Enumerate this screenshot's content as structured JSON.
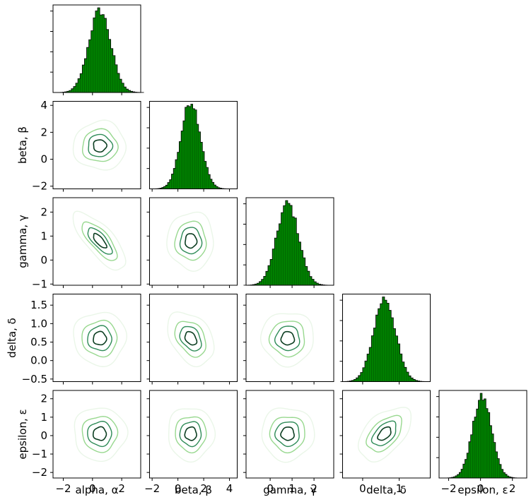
{
  "chart_data": {
    "type": "corner",
    "parameters": [
      {
        "name": "alpha",
        "label": "alpha, α",
        "xlim": [
          -2.7,
          3.3
        ],
        "ylim": [
          -2.7,
          3.3
        ],
        "ticks": [
          -2,
          0,
          2
        ],
        "mean": 0.5,
        "std": 0.75
      },
      {
        "name": "beta",
        "label": "beta, β",
        "xlim": [
          -2.2,
          4.6
        ],
        "ylim": [
          -2.2,
          4.3
        ],
        "ticks": [
          -2,
          0,
          2,
          4
        ],
        "mean": 1.0,
        "std": 0.75
      },
      {
        "name": "gamma",
        "label": "gamma, γ",
        "xlim": [
          -1.1,
          2.9
        ],
        "ylim": [
          -1.05,
          2.6
        ],
        "ticks": [
          -1,
          0,
          1,
          2
        ],
        "xticks": [
          0,
          1,
          2
        ],
        "mean": 0.8,
        "std": 0.5
      },
      {
        "name": "delta",
        "label": "delta, δ",
        "xlim": [
          -0.55,
          1.85
        ],
        "ylim": [
          -0.57,
          1.8
        ],
        "ticks": [
          -0.5,
          0.0,
          0.5,
          1.0,
          1.5
        ],
        "xticks": [
          0,
          1
        ],
        "mean": 0.6,
        "std": 0.3
      },
      {
        "name": "epsilon",
        "label": "epsilon, ε",
        "xlim": [
          -2.6,
          2.9
        ],
        "ylim": [
          -2.3,
          2.45
        ],
        "ticks": [
          -2,
          -1,
          0,
          1,
          2
        ],
        "xticks": [
          -2,
          0,
          2
        ],
        "mean": 0.1,
        "std": 0.6
      }
    ],
    "correlations": {
      "alpha-beta": 0.0,
      "alpha-gamma": -0.75,
      "alpha-delta": 0.0,
      "alpha-epsilon": 0.0,
      "beta-gamma": 0.0,
      "beta-delta": -0.35,
      "beta-epsilon": 0.0,
      "gamma-delta": 0.0,
      "gamma-epsilon": 0.0,
      "delta-epsilon": 0.5
    },
    "histogram": {
      "bins": 40,
      "fill": "#008000",
      "edge": "#000000"
    },
    "contour_levels_sigma": [
      0.6,
      1.1,
      1.6,
      2.4
    ],
    "contour_colors": [
      "#0b3d20",
      "#2e8b57",
      "#98d88f",
      "#eaf6e8"
    ]
  }
}
